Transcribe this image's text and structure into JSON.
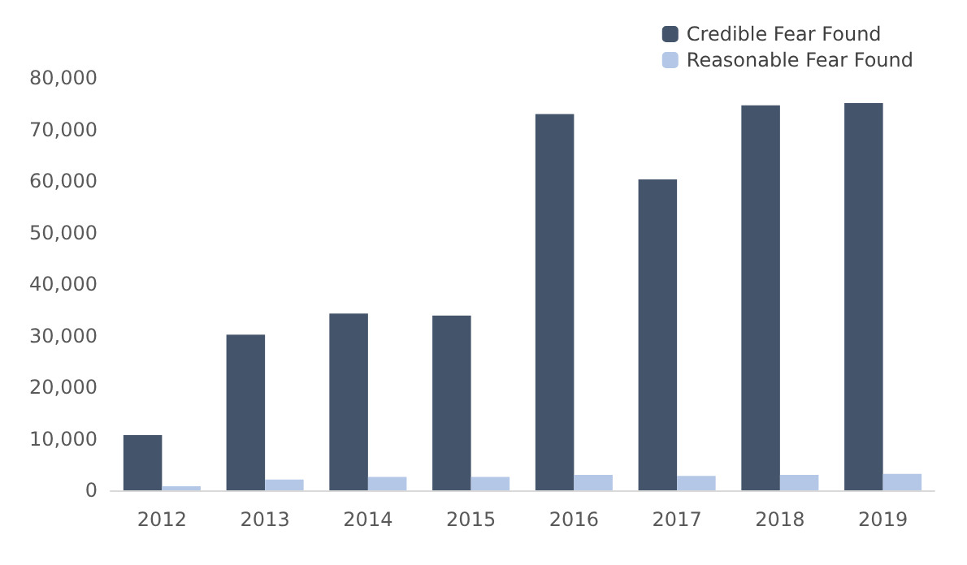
{
  "chart_data": {
    "type": "bar",
    "categories": [
      "2012",
      "2013",
      "2014",
      "2015",
      "2016",
      "2017",
      "2018",
      "2019"
    ],
    "series": [
      {
        "name": "Credible Fear Found",
        "color": "#44546a",
        "values": [
          10700,
          30200,
          34300,
          33900,
          73000,
          60300,
          74700,
          75100
        ]
      },
      {
        "name": "Reasonable Fear Found",
        "color": "#b4c7e7",
        "values": [
          800,
          2100,
          2600,
          2600,
          3000,
          2800,
          3000,
          3200
        ]
      }
    ],
    "ylim": [
      0,
      80000
    ],
    "yticks": [
      {
        "value": 0,
        "label": "0"
      },
      {
        "value": 10000,
        "label": "10,000"
      },
      {
        "value": 20000,
        "label": "20,000"
      },
      {
        "value": 30000,
        "label": "30,000"
      },
      {
        "value": 40000,
        "label": "40,000"
      },
      {
        "value": 50000,
        "label": "50,000"
      },
      {
        "value": 60000,
        "label": "60,000"
      },
      {
        "value": 70000,
        "label": "70,000"
      },
      {
        "value": 80000,
        "label": "80,000"
      }
    ],
    "grid": false,
    "legend": "top right"
  }
}
